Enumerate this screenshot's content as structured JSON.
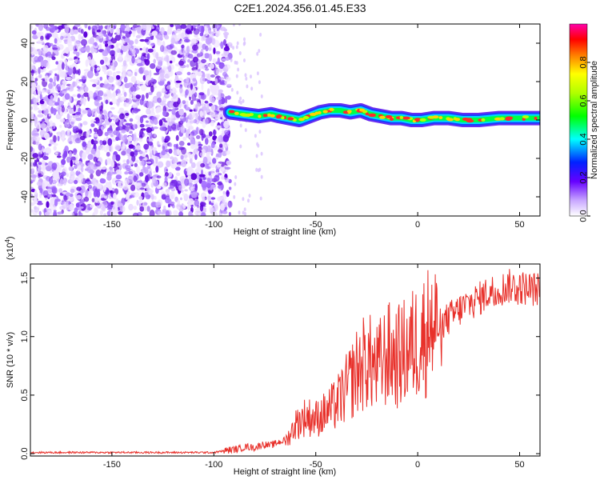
{
  "title": "C2E1.2024.356.01.45.E33",
  "chart_data": [
    {
      "type": "heatmap",
      "xlabel": "Height of straight line (km)",
      "ylabel": "Frequency (Hz)",
      "xlim": [
        -190,
        60
      ],
      "ylim": [
        -50,
        50
      ],
      "xticks": [
        -150,
        -100,
        -50,
        0,
        50
      ],
      "yticks": [
        -40,
        -20,
        0,
        20,
        40
      ],
      "noise_region": [
        -190,
        -92
      ],
      "signal_track": {
        "x": [
          -92,
          -85,
          -78,
          -72,
          -68,
          -63,
          -58,
          -53,
          -48,
          -43,
          -38,
          -33,
          -28,
          -23,
          -18,
          -13,
          -8,
          -3,
          2,
          8,
          15,
          22,
          30,
          40,
          50,
          60
        ],
        "y": [
          4,
          3,
          2,
          3,
          2,
          1,
          0,
          2,
          4,
          5,
          5,
          4,
          5,
          3,
          2,
          1,
          1,
          0,
          0,
          1,
          1,
          0,
          0,
          1,
          1,
          1
        ]
      },
      "colorbar": {
        "label": "Normalized spectral amplitude",
        "ticks": [
          0.0,
          0.2,
          0.4,
          0.6,
          0.8
        ],
        "range": [
          0,
          1
        ]
      }
    },
    {
      "type": "line",
      "xlabel": "Height of straight line (km)",
      "ylabel": "SNR (10 * v/v)",
      "scale_note": "(x10",
      "scale_exp": "4",
      "scale_close": ")",
      "color": "#e8302a",
      "xlim": [
        -190,
        60
      ],
      "ylim": [
        -0.02,
        1.62
      ],
      "xticks": [
        -150,
        -100,
        -50,
        0,
        50
      ],
      "yticks": [
        0.0,
        0.5,
        1.0,
        1.5
      ],
      "series": [
        {
          "x": [
            -190,
            -100,
            -93,
            -88,
            -84,
            -80,
            -76,
            -72,
            -68,
            -64,
            -60,
            -55,
            -50,
            -45,
            -40,
            -35,
            -30,
            -25,
            -20,
            -15,
            -10,
            -5,
            0,
            5,
            10,
            15,
            20,
            25,
            30,
            35,
            40,
            45,
            50,
            55,
            60
          ],
          "y": [
            0.01,
            0.01,
            0.03,
            0.04,
            0.06,
            0.05,
            0.08,
            0.07,
            0.1,
            0.12,
            0.25,
            0.32,
            0.3,
            0.35,
            0.42,
            0.55,
            0.7,
            0.8,
            0.72,
            0.85,
            0.82,
            0.88,
            0.97,
            1.05,
            1.08,
            1.15,
            1.22,
            1.28,
            1.32,
            1.38,
            1.4,
            1.43,
            1.42,
            1.41,
            1.4
          ]
        }
      ]
    }
  ]
}
